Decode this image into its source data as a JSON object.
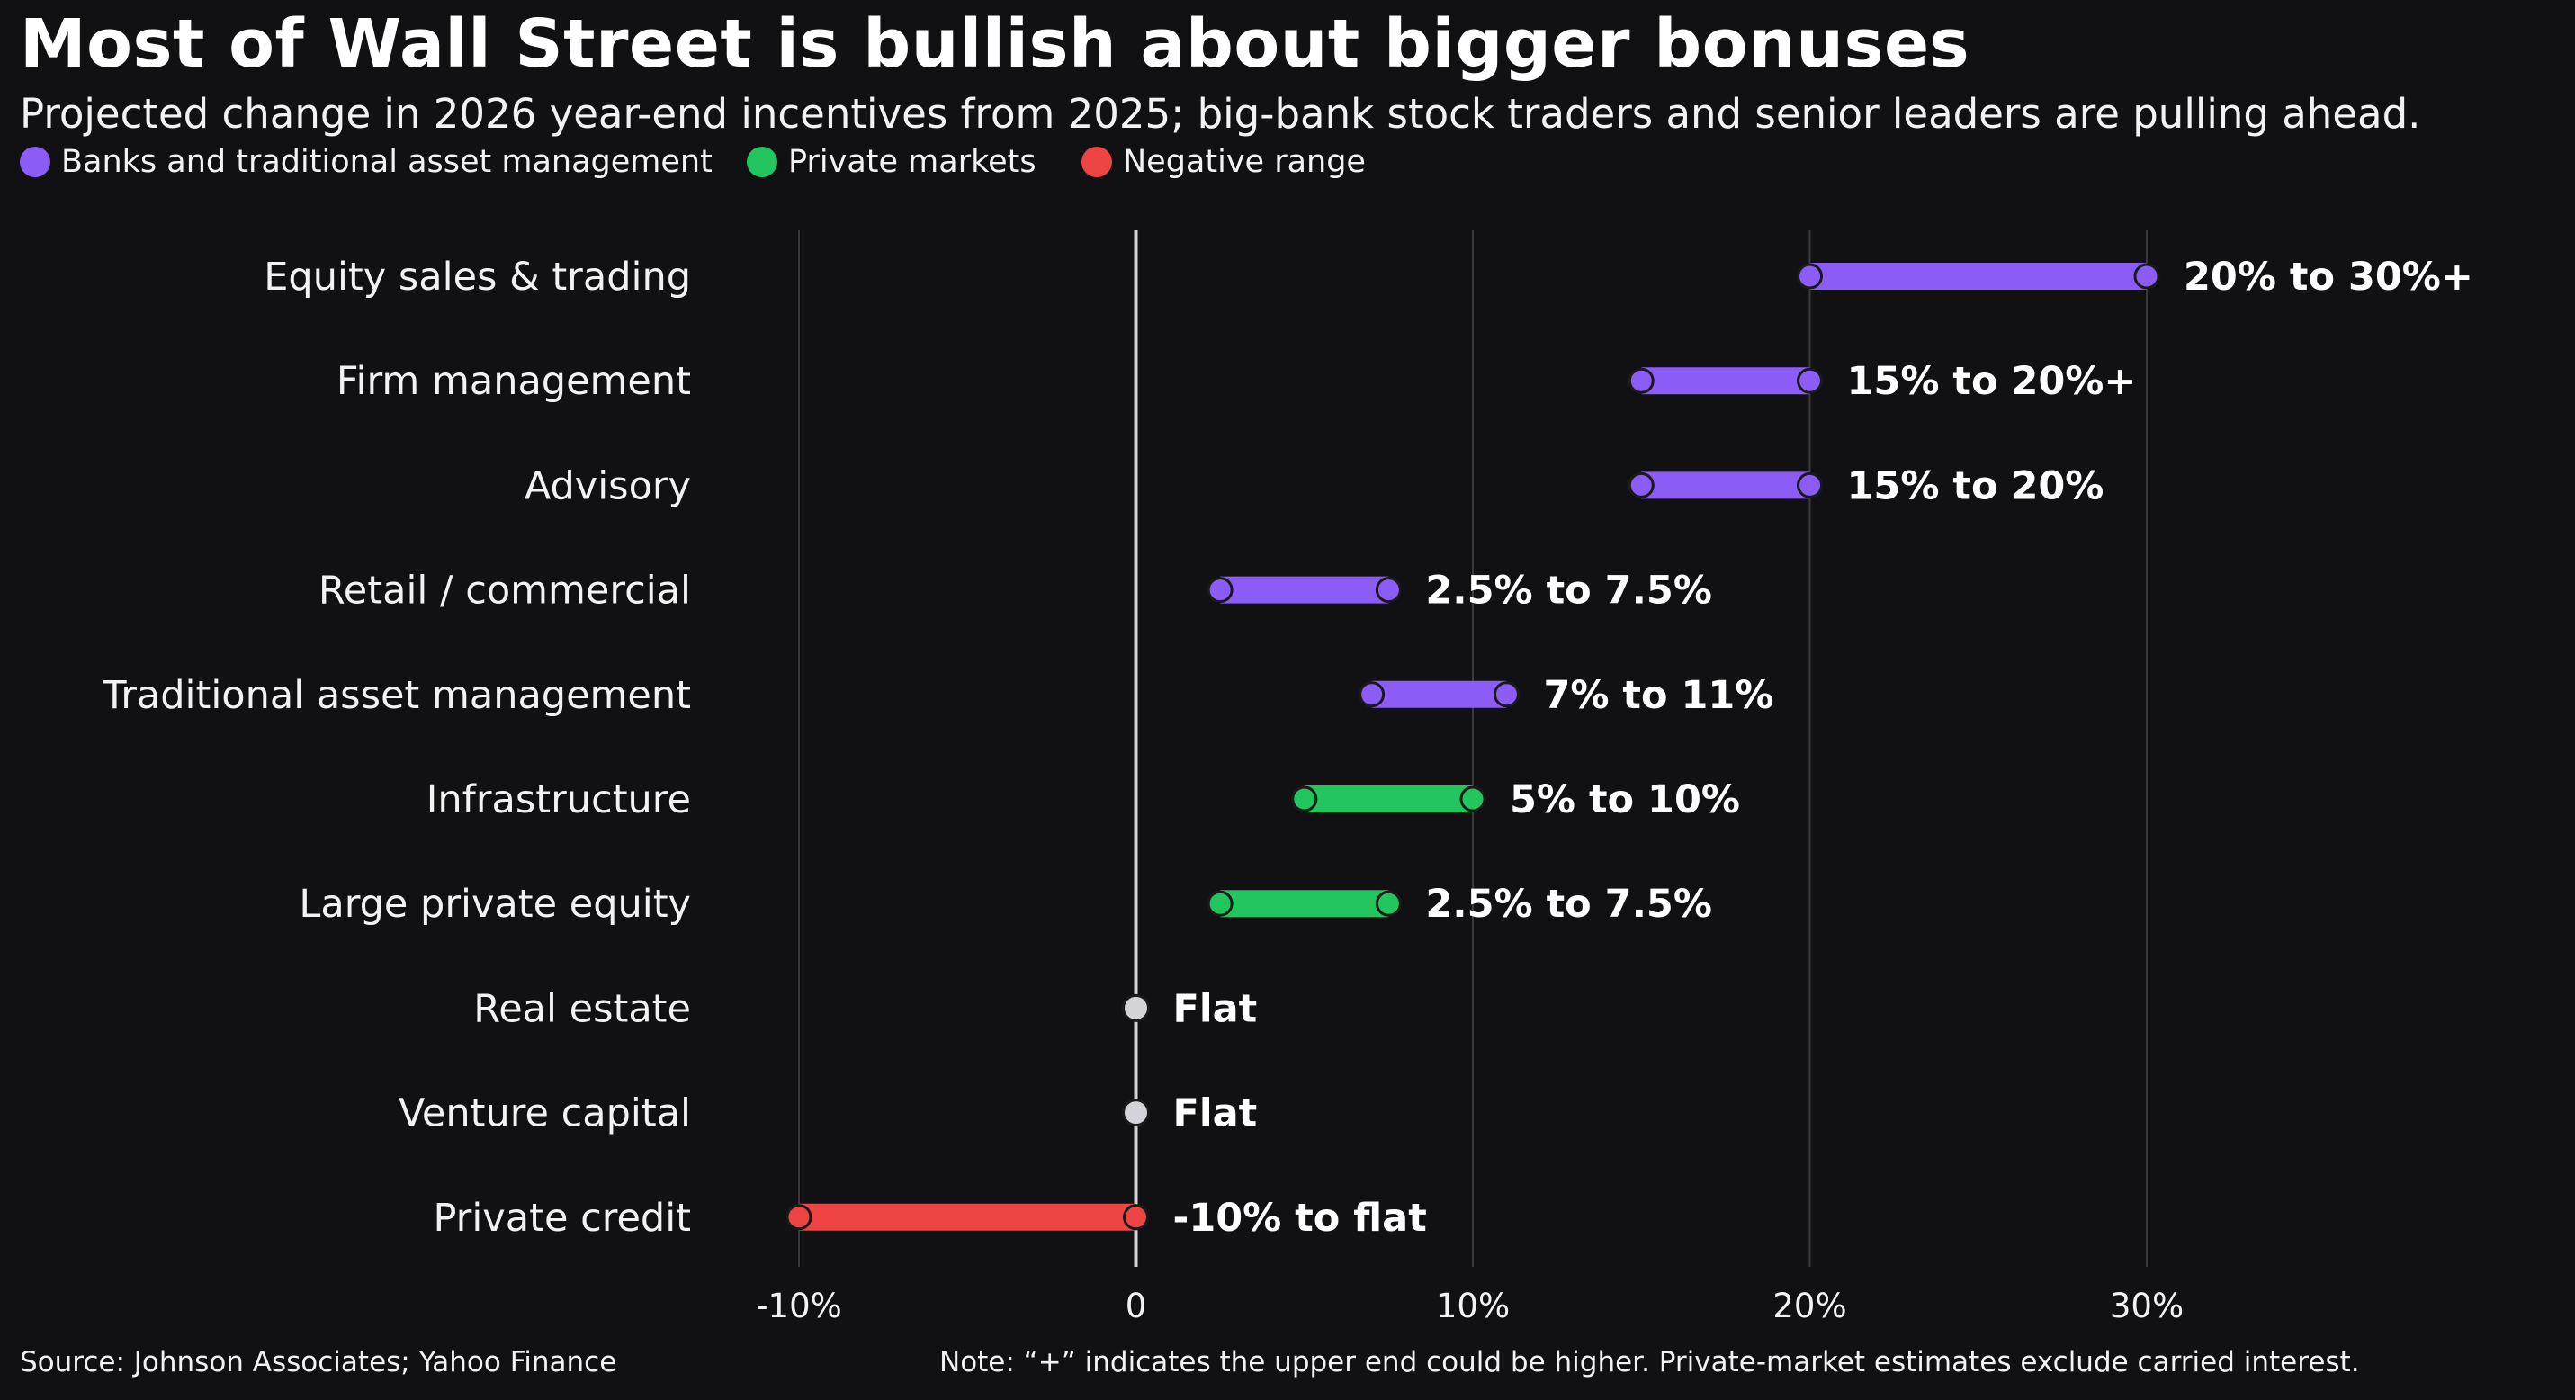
{
  "header": {
    "title": "Most of Wall Street is bullish about bigger bonuses",
    "subtitle": "Projected change in 2026 year-end incentives from 2025; big-bank stock traders and senior leaders are pulling ahead."
  },
  "legend": [
    {
      "label": "Banks and traditional asset management",
      "color": "#8b5cf6"
    },
    {
      "label": "Private markets",
      "color": "#22c55e"
    },
    {
      "label": "Negative range",
      "color": "#ef4444"
    }
  ],
  "colors": {
    "banks": "#8b5cf6",
    "private": "#22c55e",
    "negative": "#ef4444",
    "flat": "#d4d4d8",
    "background": "#111113",
    "grid": "#3a3a3e",
    "zero_line": "#d4d4d8"
  },
  "chart_data": {
    "type": "range",
    "orientation": "horizontal",
    "title": "Most of Wall Street is bullish about bigger bonuses",
    "subtitle": "Projected change in 2026 year-end incentives from 2025; big-bank stock traders and senior leaders are pulling ahead.",
    "xlim": [
      -10,
      30
    ],
    "xticks": [
      -10,
      0,
      10,
      20,
      30
    ],
    "xtick_labels": [
      "-10%",
      "0",
      "10%",
      "20%",
      "30%"
    ],
    "grid": "vertical",
    "legend_position": "top-left",
    "rows": [
      {
        "category": "Equity sales & trading",
        "low": 20,
        "high": 30,
        "group": "banks",
        "label": "20% to 30%+"
      },
      {
        "category": "Firm management",
        "low": 15,
        "high": 20,
        "group": "banks",
        "label": "15% to 20%+"
      },
      {
        "category": "Advisory",
        "low": 15,
        "high": 20,
        "group": "banks",
        "label": "15% to 20%"
      },
      {
        "category": "Retail / commercial",
        "low": 2.5,
        "high": 7.5,
        "group": "banks",
        "label": "2.5% to 7.5%"
      },
      {
        "category": "Traditional asset management",
        "low": 7,
        "high": 11,
        "group": "banks",
        "label": "7% to 11%"
      },
      {
        "category": "Infrastructure",
        "low": 5,
        "high": 10,
        "group": "private",
        "label": "5% to 10%"
      },
      {
        "category": "Large private equity",
        "low": 2.5,
        "high": 7.5,
        "group": "private",
        "label": "2.5% to 7.5%"
      },
      {
        "category": "Real estate",
        "low": 0,
        "high": 0,
        "group": "flat",
        "label": "Flat"
      },
      {
        "category": "Venture capital",
        "low": 0,
        "high": 0,
        "group": "flat",
        "label": "Flat"
      },
      {
        "category": "Private credit",
        "low": -10,
        "high": 0,
        "group": "negative",
        "label": "-10% to flat"
      }
    ]
  },
  "footer": {
    "source": "Source: Johnson Associates; Yahoo Finance",
    "note": "Note: “+” indicates the upper end could be higher. Private-market estimates exclude carried interest."
  }
}
